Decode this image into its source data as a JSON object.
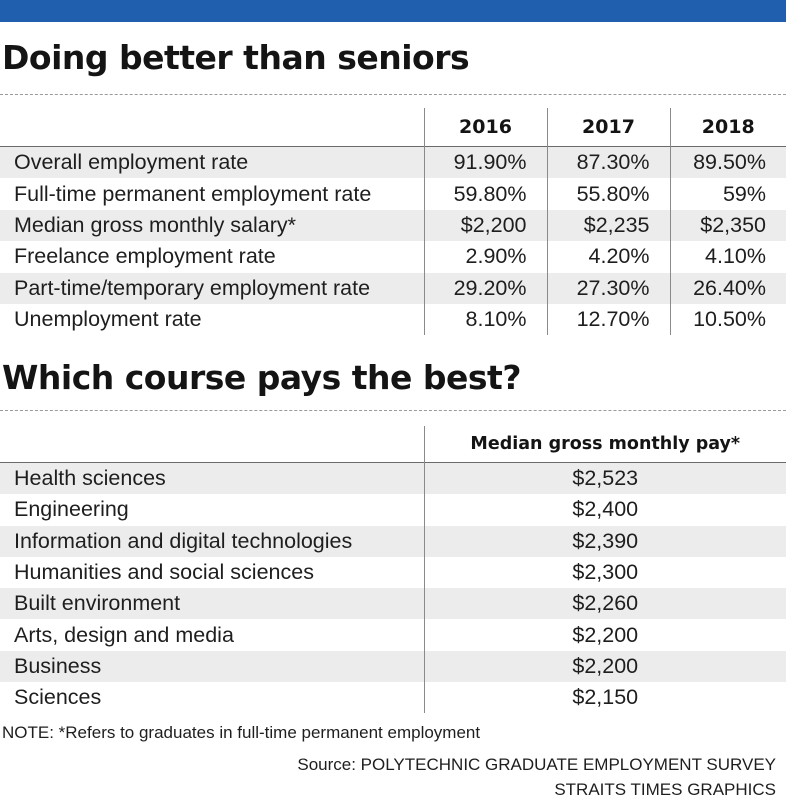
{
  "colors": {
    "accent_bar": "#1f5fae",
    "row_stripe": "#ececec"
  },
  "chart_data": [
    {
      "type": "table",
      "title": "Doing better than seniors",
      "columns": [
        "",
        "2016",
        "2017",
        "2018"
      ],
      "rows": [
        {
          "label": "Overall employment rate",
          "values": [
            "91.90%",
            "87.30%",
            "89.50%"
          ]
        },
        {
          "label": "Full-time permanent employment rate",
          "values": [
            "59.80%",
            "55.80%",
            "59%"
          ]
        },
        {
          "label": "Median gross monthly salary*",
          "values": [
            "$2,200",
            "$2,235",
            "$2,350"
          ]
        },
        {
          "label": "Freelance employment rate",
          "values": [
            "2.90%",
            "4.20%",
            "4.10%"
          ]
        },
        {
          "label": "Part-time/temporary employment rate",
          "values": [
            "29.20%",
            "27.30%",
            "26.40%"
          ]
        },
        {
          "label": "Unemployment rate",
          "values": [
            "8.10%",
            "12.70%",
            "10.50%"
          ]
        }
      ]
    },
    {
      "type": "table",
      "title": "Which course pays the best?",
      "columns": [
        "",
        "Median gross monthly pay*"
      ],
      "rows": [
        {
          "label": "Health sciences",
          "value": "$2,523"
        },
        {
          "label": "Engineering",
          "value": "$2,400"
        },
        {
          "label": "Information and digital technologies",
          "value": "$2,390"
        },
        {
          "label": "Humanities and social sciences",
          "value": "$2,300"
        },
        {
          "label": "Built environment",
          "value": "$2,260"
        },
        {
          "label": "Arts, design and media",
          "value": "$2,200"
        },
        {
          "label": "Business",
          "value": "$2,200"
        },
        {
          "label": "Sciences",
          "value": "$2,150"
        }
      ]
    }
  ],
  "footer": {
    "note": "NOTE: *Refers to graduates in full-time permanent employment",
    "source_line1": "Source: POLYTECHNIC GRADUATE EMPLOYMENT SURVEY",
    "source_line2": "STRAITS TIMES GRAPHICS"
  }
}
